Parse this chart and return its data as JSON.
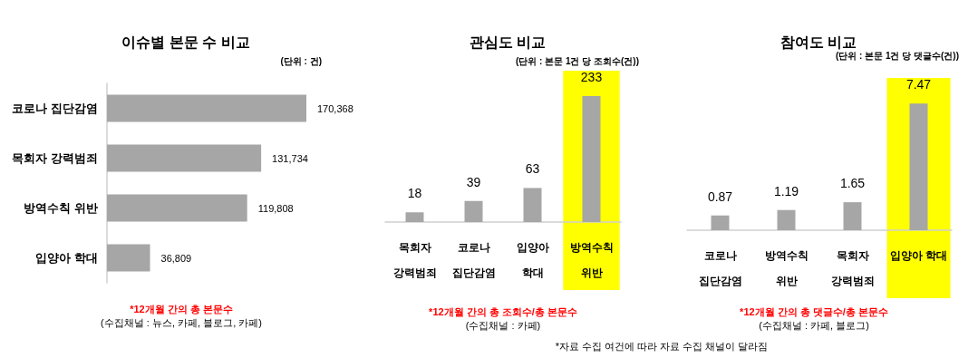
{
  "chart_data": [
    {
      "type": "bar",
      "orientation": "horizontal",
      "title": "이슈별 본문 수 비교",
      "subtitle": "(단위 : 건)",
      "categories": [
        "코로나 집단감염",
        "목회자 강력범죄",
        "방역수칙 위반",
        "입양아 학대"
      ],
      "values": [
        170368,
        131734,
        119808,
        36809
      ],
      "color": "#a6a6a6",
      "value_labels": [
        "170,368",
        "131,734",
        "119,808",
        "36,809"
      ],
      "annotations": [
        "*12개월 간의 총 본문수",
        "(수집채널 : 뉴스, 카페, 블로그, 카페)"
      ]
    },
    {
      "type": "bar",
      "title": "관심도 비교",
      "subtitle": "(단위 : 본문 1건 당 조회수(건))",
      "categories": [
        "목회자\n강력범죄",
        "코로나\n집단감염",
        "입양아\n학대",
        "방역수칙\n위반"
      ],
      "values": [
        18,
        39,
        63,
        233
      ],
      "color": "#a6a6a6",
      "data_labels": true,
      "bands": [
        {
          "axis": "x",
          "from": "방역수칙\n위반",
          "to": "방역수칙\n위반",
          "color": "#ffff00"
        }
      ],
      "annotations": [
        "*12개월 간의 총 조회수/총 본문수",
        "(수집채널 : 카페)",
        "*자료 수집 여건에 따라 자료 수집 채널이 달라짐"
      ]
    },
    {
      "type": "bar",
      "title": "참여도 비교",
      "subtitle": "(단위 : 본문 1건 당 댓글수(건))",
      "categories": [
        "코로나\n집단감염",
        "방역수칙\n위반",
        "목회자\n강력범죄",
        "입양아 학대"
      ],
      "values": [
        0.87,
        1.19,
        1.65,
        7.47
      ],
      "color": "#a6a6a6",
      "data_labels": true,
      "bands": [
        {
          "axis": "x",
          "from": "입양아 학대",
          "to": "입양아 학대",
          "color": "#ffff00"
        }
      ],
      "annotations": [
        "*12개월 간의 총 댓글수/총 본문수",
        "(수집채널 : 카페, 블로그)"
      ]
    }
  ]
}
